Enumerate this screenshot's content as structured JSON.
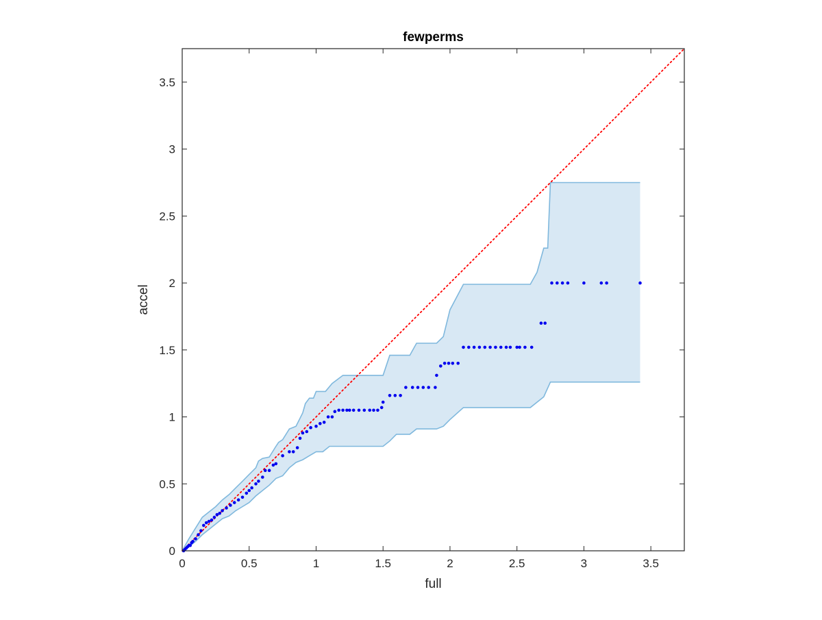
{
  "figure": {
    "title": "fewperms",
    "xlabel": "full",
    "ylabel": "accel"
  },
  "colors": {
    "band_fill": "#d8e8f4",
    "band_edge": "#7fb8dd",
    "points": "#0000ee",
    "reference_line": "#ff0000",
    "axes": "#262626"
  },
  "chart_data": {
    "type": "scatter",
    "title": "fewperms",
    "xlabel": "full",
    "ylabel": "accel",
    "xlim": [
      0,
      3.75
    ],
    "ylim": [
      0,
      3.75
    ],
    "grid": false,
    "xticks": [
      0,
      0.5,
      1,
      1.5,
      2,
      2.5,
      3,
      3.5
    ],
    "yticks": [
      0,
      0.5,
      1,
      1.5,
      2,
      2.5,
      3,
      3.5
    ],
    "xtick_labels": [
      "0",
      "0.5",
      "1",
      "1.5",
      "2",
      "2.5",
      "3",
      "3.5"
    ],
    "ytick_labels": [
      "0",
      "0.5",
      "1",
      "1.5",
      "2",
      "2.5",
      "3",
      "3.5"
    ],
    "reference_line": {
      "style": "dotted",
      "x": [
        0,
        3.75
      ],
      "y": [
        0,
        3.75
      ]
    },
    "band": {
      "upper": {
        "x": [
          0,
          0.05,
          0.1,
          0.15,
          0.2,
          0.25,
          0.3,
          0.35,
          0.4,
          0.45,
          0.5,
          0.55,
          0.57,
          0.6,
          0.65,
          0.7,
          0.72,
          0.75,
          0.8,
          0.85,
          0.9,
          0.92,
          0.95,
          0.98,
          1.0,
          1.07,
          1.12,
          1.2,
          1.3,
          1.5,
          1.55,
          1.7,
          1.75,
          1.9,
          1.95,
          2.0,
          2.1,
          2.6,
          2.65,
          2.7,
          2.73,
          2.75,
          3.42
        ],
        "y": [
          0.0,
          0.09,
          0.17,
          0.25,
          0.29,
          0.33,
          0.38,
          0.42,
          0.47,
          0.52,
          0.57,
          0.62,
          0.67,
          0.69,
          0.7,
          0.78,
          0.81,
          0.83,
          0.91,
          0.93,
          1.03,
          1.1,
          1.14,
          1.14,
          1.19,
          1.19,
          1.25,
          1.31,
          1.31,
          1.31,
          1.46,
          1.46,
          1.55,
          1.55,
          1.6,
          1.8,
          1.99,
          1.99,
          2.08,
          2.26,
          2.26,
          2.75,
          2.75
        ]
      },
      "lower": {
        "x": [
          0,
          0.05,
          0.1,
          0.15,
          0.2,
          0.25,
          0.3,
          0.35,
          0.4,
          0.45,
          0.5,
          0.55,
          0.6,
          0.65,
          0.7,
          0.75,
          0.8,
          0.85,
          0.9,
          0.95,
          1.0,
          1.05,
          1.1,
          1.2,
          1.5,
          1.55,
          1.6,
          1.7,
          1.75,
          1.9,
          1.95,
          2.0,
          2.1,
          2.6,
          2.7,
          2.75,
          3.42
        ],
        "y": [
          0.0,
          0.03,
          0.07,
          0.12,
          0.16,
          0.2,
          0.24,
          0.26,
          0.3,
          0.33,
          0.36,
          0.41,
          0.45,
          0.49,
          0.54,
          0.56,
          0.62,
          0.66,
          0.68,
          0.71,
          0.74,
          0.74,
          0.78,
          0.78,
          0.78,
          0.82,
          0.87,
          0.87,
          0.91,
          0.91,
          0.93,
          0.98,
          1.07,
          1.07,
          1.15,
          1.26,
          1.26
        ]
      }
    },
    "series": [
      {
        "type": "scatter",
        "x": [
          0.01,
          0.02,
          0.03,
          0.04,
          0.05,
          0.06,
          0.07,
          0.08,
          0.1,
          0.12,
          0.14,
          0.16,
          0.18,
          0.2,
          0.22,
          0.24,
          0.26,
          0.28,
          0.3,
          0.33,
          0.36,
          0.39,
          0.42,
          0.45,
          0.48,
          0.5,
          0.52,
          0.55,
          0.57,
          0.6,
          0.62,
          0.65,
          0.68,
          0.7,
          0.75,
          0.8,
          0.83,
          0.86,
          0.88,
          0.9,
          0.93,
          0.96,
          1.0,
          1.03,
          1.06,
          1.09,
          1.12,
          1.14,
          1.17,
          1.2,
          1.23,
          1.25,
          1.28,
          1.32,
          1.36,
          1.4,
          1.43,
          1.46,
          1.49,
          1.5,
          1.55,
          1.59,
          1.63,
          1.67,
          1.72,
          1.76,
          1.8,
          1.84,
          1.89,
          1.9,
          1.93,
          1.96,
          1.99,
          2.02,
          2.06,
          2.1,
          2.14,
          2.18,
          2.22,
          2.26,
          2.3,
          2.34,
          2.38,
          2.42,
          2.45,
          2.5,
          2.52,
          2.56,
          2.61,
          2.68,
          2.71,
          2.76,
          2.8,
          2.84,
          2.88,
          3.0,
          3.13,
          3.17,
          3.42
        ],
        "y": [
          0.0,
          0.01,
          0.02,
          0.03,
          0.04,
          0.04,
          0.06,
          0.07,
          0.09,
          0.12,
          0.15,
          0.19,
          0.21,
          0.22,
          0.23,
          0.25,
          0.27,
          0.28,
          0.3,
          0.32,
          0.34,
          0.36,
          0.38,
          0.4,
          0.43,
          0.45,
          0.47,
          0.5,
          0.52,
          0.55,
          0.6,
          0.6,
          0.64,
          0.65,
          0.71,
          0.74,
          0.74,
          0.77,
          0.84,
          0.88,
          0.89,
          0.92,
          0.93,
          0.95,
          0.96,
          1.0,
          1.0,
          1.04,
          1.05,
          1.05,
          1.05,
          1.05,
          1.05,
          1.05,
          1.05,
          1.05,
          1.05,
          1.05,
          1.07,
          1.11,
          1.16,
          1.16,
          1.16,
          1.22,
          1.22,
          1.22,
          1.22,
          1.22,
          1.22,
          1.31,
          1.38,
          1.4,
          1.4,
          1.4,
          1.4,
          1.52,
          1.52,
          1.52,
          1.52,
          1.52,
          1.52,
          1.52,
          1.52,
          1.52,
          1.52,
          1.52,
          1.52,
          1.52,
          1.52,
          1.7,
          1.7,
          2.0,
          2.0,
          2.0,
          2.0,
          2.0,
          2.0,
          2.0,
          2.0
        ]
      }
    ]
  }
}
